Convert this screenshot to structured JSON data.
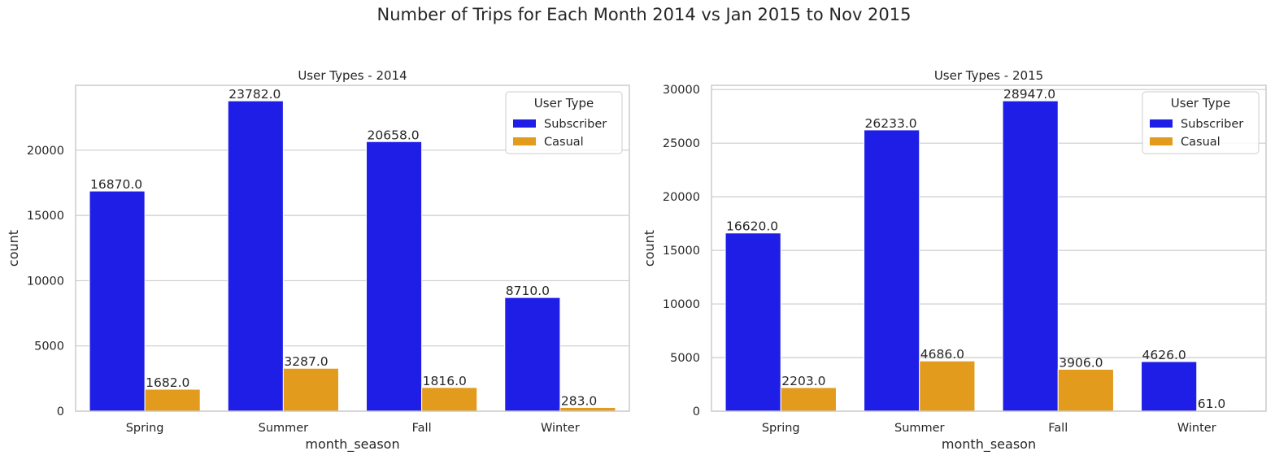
{
  "figure": {
    "suptitle": "Number of Trips for Each Month 2014 vs Jan 2015 to Nov 2015"
  },
  "colors": {
    "Subscriber": "#1e1ee6",
    "Casual": "#e39b1d",
    "grid": "#cccccc",
    "spine": "#cccccc"
  },
  "chart_data": [
    {
      "type": "bar",
      "title": "User Types - 2014",
      "xlabel": "month_season",
      "ylabel": "count",
      "categories": [
        "Spring",
        "Summer",
        "Fall",
        "Winter"
      ],
      "ylim": [
        0,
        24971
      ],
      "yticks": [
        0,
        5000,
        10000,
        15000,
        20000
      ],
      "series": [
        {
          "name": "Subscriber",
          "values": [
            16870,
            23782,
            20658,
            8710
          ]
        },
        {
          "name": "Casual",
          "values": [
            1682,
            3287,
            1816,
            283
          ]
        }
      ],
      "bar_labels": [
        [
          "16870.0",
          "23782.0",
          "20658.0",
          "8710.0"
        ],
        [
          "1682.0",
          "3287.0",
          "1816.0",
          "283.0"
        ]
      ],
      "legend": {
        "title": "User Type",
        "entries": [
          "Subscriber",
          "Casual"
        ],
        "placement": "top-right"
      },
      "grid": "y"
    },
    {
      "type": "bar",
      "title": "User Types - 2015",
      "xlabel": "month_season",
      "ylabel": "count",
      "categories": [
        "Spring",
        "Summer",
        "Fall",
        "Winter"
      ],
      "ylim": [
        0,
        30394
      ],
      "yticks": [
        0,
        5000,
        10000,
        15000,
        20000,
        25000,
        30000
      ],
      "series": [
        {
          "name": "Subscriber",
          "values": [
            16620,
            26233,
            28947,
            4626
          ]
        },
        {
          "name": "Casual",
          "values": [
            2203,
            4686,
            3906,
            61
          ]
        }
      ],
      "bar_labels": [
        [
          "16620.0",
          "26233.0",
          "28947.0",
          "4626.0"
        ],
        [
          "2203.0",
          "4686.0",
          "3906.0",
          "61.0"
        ]
      ],
      "legend": {
        "title": "User Type",
        "entries": [
          "Subscriber",
          "Casual"
        ],
        "placement": "top-right"
      },
      "grid": "y"
    }
  ]
}
